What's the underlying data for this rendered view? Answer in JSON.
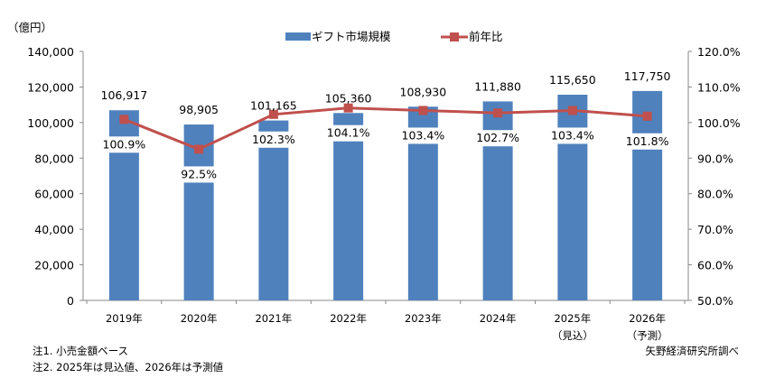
{
  "chart_data": {
    "type": "bar+line",
    "unit_label": "（億円）",
    "categories": [
      "2019年",
      "2020年",
      "2021年",
      "2022年",
      "2023年",
      "2024年",
      "2025年",
      "2026年"
    ],
    "category_sublabels": [
      "",
      "",
      "",
      "",
      "",
      "",
      "（見込）",
      "（予測）"
    ],
    "series": [
      {
        "name": "ギフト市場規模",
        "type": "bar",
        "axis": "left",
        "color": "#4F81BD",
        "values": [
          106917,
          98905,
          101165,
          105360,
          108930,
          111880,
          115650,
          117750
        ],
        "labels": [
          "106,917",
          "98,905",
          "101,165",
          "105,360",
          "108,930",
          "111,880",
          "115,650",
          "117,750"
        ]
      },
      {
        "name": "前年比",
        "type": "line",
        "axis": "right",
        "color": "#C0504D",
        "values": [
          100.9,
          92.5,
          102.3,
          104.1,
          103.4,
          102.7,
          103.4,
          101.8
        ],
        "labels": [
          "100.9%",
          "92.5%",
          "102.3%",
          "104.1%",
          "103.4%",
          "102.7%",
          "103.4%",
          "101.8%"
        ]
      }
    ],
    "left_axis": {
      "range": [
        0,
        140000
      ],
      "ticks": [
        "0",
        "20,000",
        "40,000",
        "60,000",
        "80,000",
        "100,000",
        "120,000",
        "140,000"
      ]
    },
    "right_axis": {
      "range": [
        50,
        120
      ],
      "ticks": [
        "50.0%",
        "60.0%",
        "70.0%",
        "80.0%",
        "90.0%",
        "100.0%",
        "110.0%",
        "120.0%"
      ]
    },
    "legend_placement": "top-center",
    "grid": false
  },
  "notes": [
    "注1. 小売金額ベース",
    "注2. 2025年は見込値、2026年は予測値"
  ],
  "source": "矢野経済研究所調べ"
}
